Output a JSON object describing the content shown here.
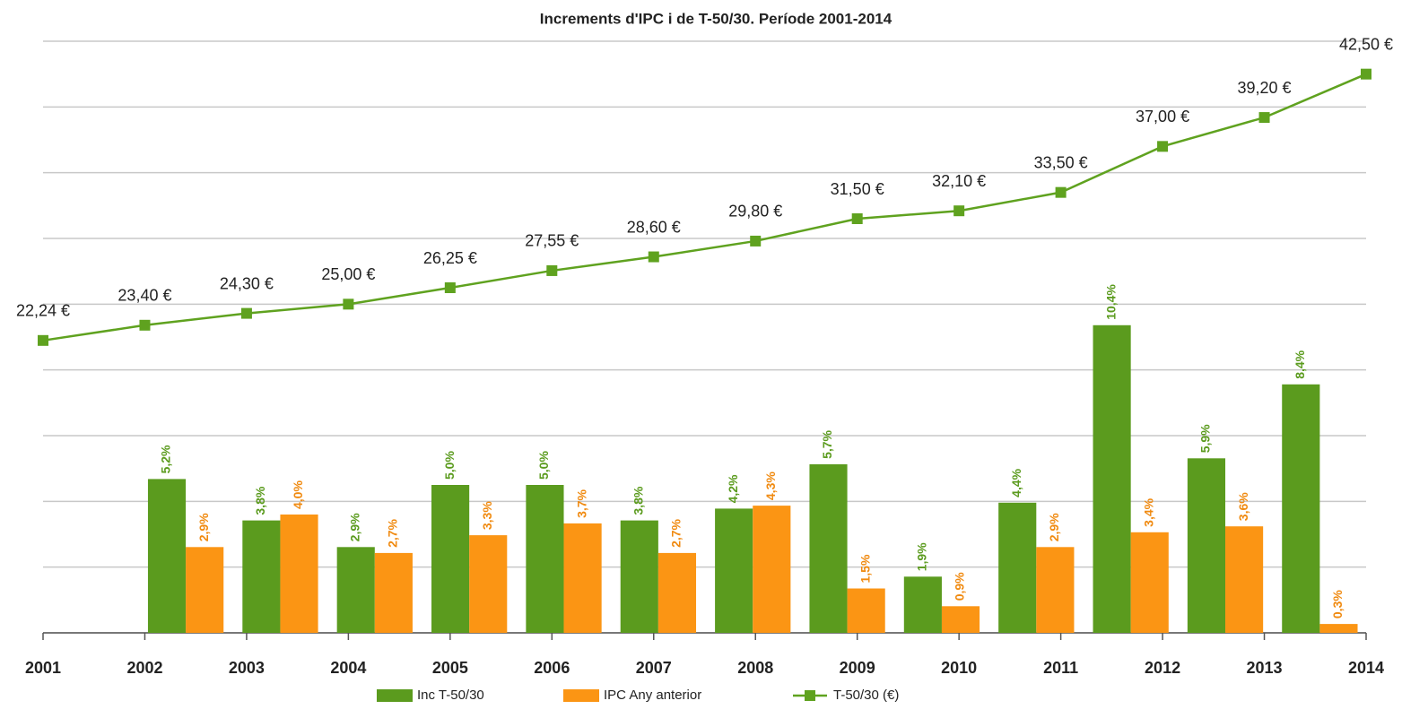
{
  "chart_data": {
    "type": "bar",
    "title": "Increments d'IPC i de T-50/30. Període 2001-2014",
    "categories": [
      "2001",
      "2002",
      "2003",
      "2004",
      "2005",
      "2006",
      "2007",
      "2008",
      "2009",
      "2010",
      "2011",
      "2012",
      "2013",
      "2014"
    ],
    "ylim": [
      0,
      20
    ],
    "y2lim": [
      0,
      45
    ],
    "y2ticks": [
      0,
      5,
      10,
      15,
      20,
      25,
      30,
      35,
      40,
      45
    ],
    "grid": true,
    "legend": "bottom",
    "series": [
      {
        "name": "Inc T-50/30",
        "color": "#5b9b1e",
        "label_color": "#5b9b1e",
        "values": [
          null,
          5.2,
          3.8,
          2.9,
          5.0,
          5.0,
          3.8,
          4.2,
          5.7,
          1.9,
          4.4,
          10.4,
          5.9,
          8.4
        ],
        "value_labels": [
          null,
          "5,2%",
          "3,8%",
          "2,9%",
          "5,0%",
          "5,0%",
          "3,8%",
          "4,2%",
          "5,7%",
          "1,9%",
          "4,4%",
          "10,4%",
          "5,9%",
          "8,4%"
        ]
      },
      {
        "name": "IPC Any anterior",
        "color": "#fb9514",
        "label_color": "#f08a10",
        "values": [
          null,
          2.9,
          4.0,
          2.7,
          3.3,
          3.7,
          2.7,
          4.3,
          1.5,
          0.9,
          2.9,
          3.4,
          3.6,
          0.3
        ],
        "value_labels": [
          null,
          "2,9%",
          "4,0%",
          "2,7%",
          "3,3%",
          "3,7%",
          "2,7%",
          "4,3%",
          "1,5%",
          "0,9%",
          "2,9%",
          "3,4%",
          "3,6%",
          "0,3%"
        ]
      },
      {
        "name": "T-50/30 (€)",
        "type": "line",
        "axis": "y2",
        "color": "#5fa21f",
        "values": [
          22.24,
          23.4,
          24.3,
          25.0,
          26.25,
          27.55,
          28.6,
          29.8,
          31.5,
          32.1,
          33.5,
          37.0,
          39.2,
          42.5
        ],
        "value_labels": [
          "22,24 €",
          "23,40 €",
          "24,30 €",
          "25,00 €",
          "26,25 €",
          "27,55 €",
          "28,60 €",
          "29,80 €",
          "31,50 €",
          "32,10 €",
          "33,50 €",
          "37,00 €",
          "39,20 €",
          "42,50 €"
        ]
      }
    ]
  }
}
